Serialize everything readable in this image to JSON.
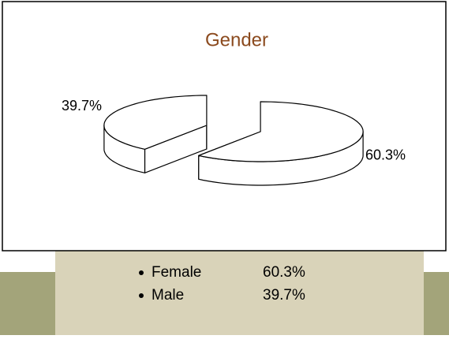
{
  "chart_data": {
    "type": "pie",
    "title": "Gender",
    "categories": [
      "Female",
      "Male"
    ],
    "values": [
      60.3,
      39.7
    ],
    "value_labels": [
      "60.3%",
      "39.7%"
    ],
    "color": "#ffffff",
    "exploded": true
  }
}
